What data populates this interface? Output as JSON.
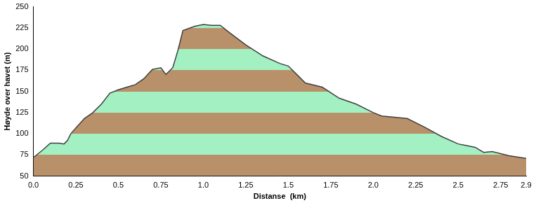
{
  "chart_data": {
    "type": "area",
    "x_label": "Distanse  (km)",
    "y_label": "Høyde over havet (m)",
    "x": [
      0.0,
      0.05,
      0.1,
      0.15,
      0.18,
      0.2,
      0.22,
      0.25,
      0.3,
      0.35,
      0.4,
      0.45,
      0.5,
      0.55,
      0.6,
      0.65,
      0.7,
      0.75,
      0.78,
      0.82,
      0.85,
      0.88,
      0.95,
      1.0,
      1.05,
      1.1,
      1.15,
      1.25,
      1.35,
      1.45,
      1.5,
      1.55,
      1.6,
      1.7,
      1.8,
      1.9,
      2.0,
      2.05,
      2.2,
      2.3,
      2.4,
      2.5,
      2.55,
      2.6,
      2.65,
      2.7,
      2.8,
      2.9
    ],
    "values": [
      72,
      80,
      89,
      89,
      88,
      92,
      100,
      107,
      118,
      125,
      135,
      148,
      152,
      155,
      158,
      165,
      176,
      178,
      170,
      178,
      198,
      222,
      227,
      229,
      228,
      228,
      220,
      205,
      192,
      183,
      180,
      170,
      160,
      155,
      142,
      135,
      125,
      121,
      118,
      108,
      97,
      88,
      86,
      84,
      78,
      79,
      74,
      71
    ],
    "color": "#404040",
    "xlim": [
      0,
      2.9
    ],
    "xticks": [
      {
        "value": 0,
        "label": "0.0"
      },
      0.25,
      0.5,
      0.75,
      {
        "value": 1,
        "label": "1.0"
      },
      1.25,
      1.5,
      1.75,
      {
        "value": 2,
        "label": "2.0"
      },
      2.25,
      2.5,
      2.75,
      2.9
    ],
    "ylim": [
      50,
      250
    ],
    "yticks": [
      50,
      75,
      100,
      125,
      150,
      175,
      200,
      225,
      250
    ],
    "grid": false
  }
}
